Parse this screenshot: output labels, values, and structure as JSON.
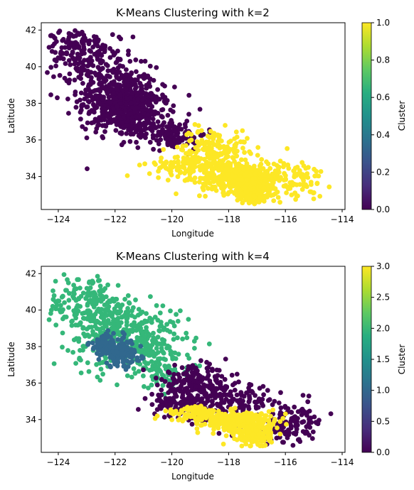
{
  "chart_data": [
    {
      "type": "scatter",
      "title": "K-Means Clustering with k=2",
      "xlabel": "Longitude",
      "ylabel": "Latitude",
      "xlim": [
        -124.6,
        -113.9
      ],
      "ylim": [
        32.2,
        42.4
      ],
      "xticks": [
        -124,
        -122,
        -120,
        -118,
        -116,
        -114
      ],
      "yticks": [
        34,
        36,
        38,
        40,
        42
      ],
      "grid": false,
      "colorbar": {
        "label": "Cluster",
        "range": [
          0,
          1
        ],
        "ticks": [
          0.0,
          0.2,
          0.4,
          0.6,
          0.8,
          1.0
        ],
        "tick_labels": [
          "0.0",
          "0.2",
          "0.4",
          "0.6",
          "0.8",
          "1.0"
        ],
        "colormap": "viridis"
      },
      "clusters": [
        {
          "value": 0,
          "color": "#440154",
          "count": 950,
          "regions": [
            {
              "cx": -121.9,
              "cy": 38.2,
              "sx": 0.7,
              "sy": 0.9,
              "weight": 40
            },
            {
              "cx": -121.2,
              "cy": 37.5,
              "sx": 0.6,
              "sy": 0.7,
              "weight": 25
            },
            {
              "cx": -122.8,
              "cy": 40.2,
              "sx": 0.7,
              "sy": 0.9,
              "weight": 15
            },
            {
              "cx": -123.6,
              "cy": 41.0,
              "sx": 0.5,
              "sy": 0.6,
              "weight": 8
            },
            {
              "cx": -120.0,
              "cy": 36.3,
              "sx": 0.6,
              "sy": 0.4,
              "weight": 12
            }
          ]
        },
        {
          "value": 1,
          "color": "#fde725",
          "count": 950,
          "regions": [
            {
              "cx": -117.6,
              "cy": 33.9,
              "sx": 0.7,
              "sy": 0.4,
              "weight": 40
            },
            {
              "cx": -117.1,
              "cy": 33.0,
              "sx": 0.3,
              "sy": 0.25,
              "weight": 15
            },
            {
              "cx": -119.2,
              "cy": 34.6,
              "sx": 0.8,
              "sy": 0.3,
              "weight": 15
            },
            {
              "cx": -118.5,
              "cy": 35.6,
              "sx": 0.6,
              "sy": 0.5,
              "weight": 15
            },
            {
              "cx": -116.0,
              "cy": 33.8,
              "sx": 0.7,
              "sy": 0.6,
              "weight": 15
            }
          ]
        }
      ]
    },
    {
      "type": "scatter",
      "title": "K-Means Clustering with k=4",
      "xlabel": "Longitude",
      "ylabel": "Latitude",
      "xlim": [
        -124.6,
        -113.9
      ],
      "ylim": [
        32.2,
        42.4
      ],
      "xticks": [
        -124,
        -122,
        -120,
        -118,
        -116,
        -114
      ],
      "yticks": [
        34,
        36,
        38,
        40,
        42
      ],
      "grid": false,
      "colorbar": {
        "label": "Cluster",
        "range": [
          0,
          3
        ],
        "ticks": [
          0.0,
          0.5,
          1.0,
          1.5,
          2.0,
          2.5,
          3.0
        ],
        "tick_labels": [
          "0.0",
          "0.5",
          "1.0",
          "1.5",
          "2.0",
          "2.5",
          "3.0"
        ],
        "colormap": "viridis"
      },
      "clusters": [
        {
          "value": 2,
          "color": "#35b779",
          "count": 650,
          "regions": [
            {
              "cx": -122.0,
              "cy": 38.8,
              "sx": 0.8,
              "sy": 1.0,
              "weight": 40
            },
            {
              "cx": -123.0,
              "cy": 40.4,
              "sx": 0.7,
              "sy": 0.8,
              "weight": 25
            },
            {
              "cx": -120.8,
              "cy": 38.0,
              "sx": 0.7,
              "sy": 0.8,
              "weight": 25
            },
            {
              "cx": -120.3,
              "cy": 36.6,
              "sx": 0.5,
              "sy": 0.5,
              "weight": 10
            }
          ]
        },
        {
          "value": 1,
          "color": "#31688e",
          "count": 220,
          "regions": [
            {
              "cx": -121.8,
              "cy": 37.6,
              "sx": 0.35,
              "sy": 0.35,
              "weight": 60
            },
            {
              "cx": -122.3,
              "cy": 38.1,
              "sx": 0.3,
              "sy": 0.3,
              "weight": 40
            }
          ]
        },
        {
          "value": 0,
          "color": "#440154",
          "count": 550,
          "regions": [
            {
              "cx": -119.2,
              "cy": 35.9,
              "sx": 0.6,
              "sy": 0.5,
              "weight": 35
            },
            {
              "cx": -118.0,
              "cy": 35.0,
              "sx": 0.8,
              "sy": 0.5,
              "weight": 25
            },
            {
              "cx": -116.0,
              "cy": 33.8,
              "sx": 0.7,
              "sy": 0.6,
              "weight": 25
            },
            {
              "cx": -119.8,
              "cy": 34.8,
              "sx": 0.5,
              "sy": 0.3,
              "weight": 15
            }
          ]
        },
        {
          "value": 3,
          "color": "#fde725",
          "count": 520,
          "regions": [
            {
              "cx": -117.9,
              "cy": 33.9,
              "sx": 0.5,
              "sy": 0.25,
              "weight": 45
            },
            {
              "cx": -117.1,
              "cy": 33.1,
              "sx": 0.3,
              "sy": 0.3,
              "weight": 25
            },
            {
              "cx": -119.0,
              "cy": 34.3,
              "sx": 0.6,
              "sy": 0.2,
              "weight": 20
            },
            {
              "cx": -116.8,
              "cy": 33.9,
              "sx": 0.4,
              "sy": 0.3,
              "weight": 10
            }
          ]
        }
      ]
    }
  ]
}
